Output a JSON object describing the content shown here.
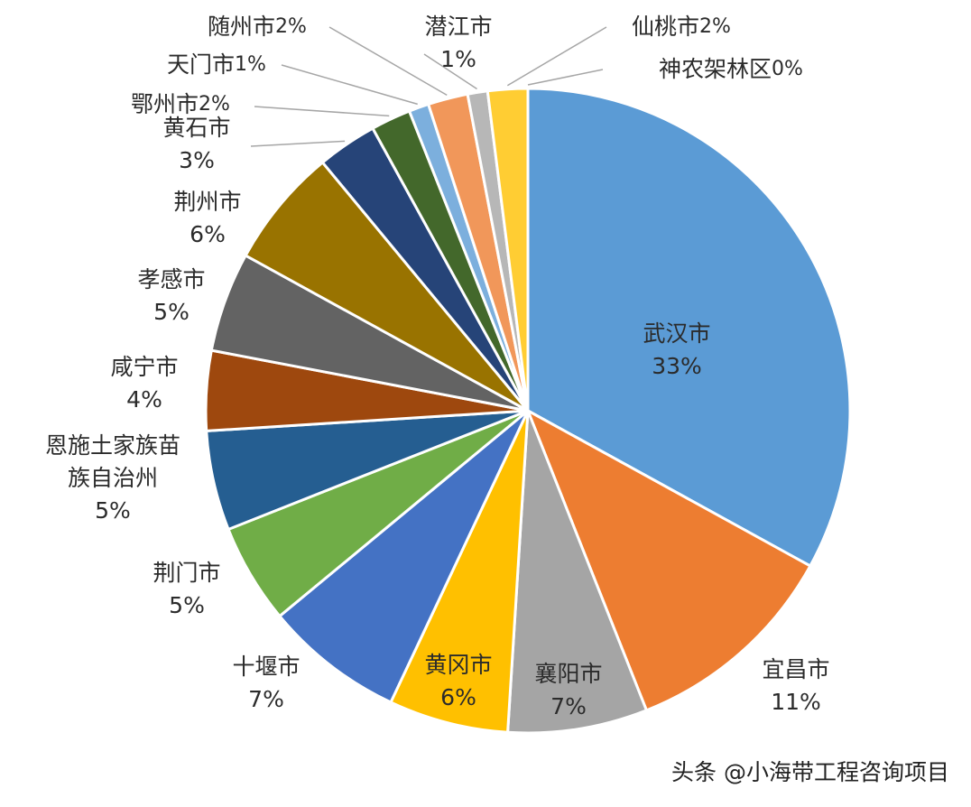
{
  "chart_data": {
    "type": "pie",
    "categories": [
      "武汉市",
      "宜昌市",
      "襄阳市",
      "黄冈市",
      "十堰市",
      "荆门市",
      "恩施土家族苗族自治州",
      "咸宁市",
      "孝感市",
      "荆州市",
      "黄石市",
      "鄂州市",
      "天门市",
      "随州市",
      "潜江市",
      "仙桃市",
      "神农架林区"
    ],
    "values": [
      33,
      11,
      7,
      6,
      7,
      5,
      5,
      4,
      5,
      6,
      3,
      2,
      1,
      2,
      1,
      2,
      0
    ],
    "value_labels": [
      "33%",
      "11%",
      "7%",
      "6%",
      "7%",
      "5%",
      "5%",
      "4%",
      "5%",
      "6%",
      "3%",
      "2%",
      "1%",
      "2%",
      "1%",
      "2%",
      "0%"
    ],
    "colors": [
      "#5b9bd5",
      "#ed7d31",
      "#a5a5a5",
      "#ffc000",
      "#4472c4",
      "#70ad47",
      "#255e91",
      "#9e480e",
      "#636363",
      "#997300",
      "#264478",
      "#43682b",
      "#7cafdd",
      "#f1975a",
      "#b7b7b7",
      "#ffcd33",
      "#698ed0"
    ],
    "watermark": "头条 @小海带工程咨询项目"
  }
}
